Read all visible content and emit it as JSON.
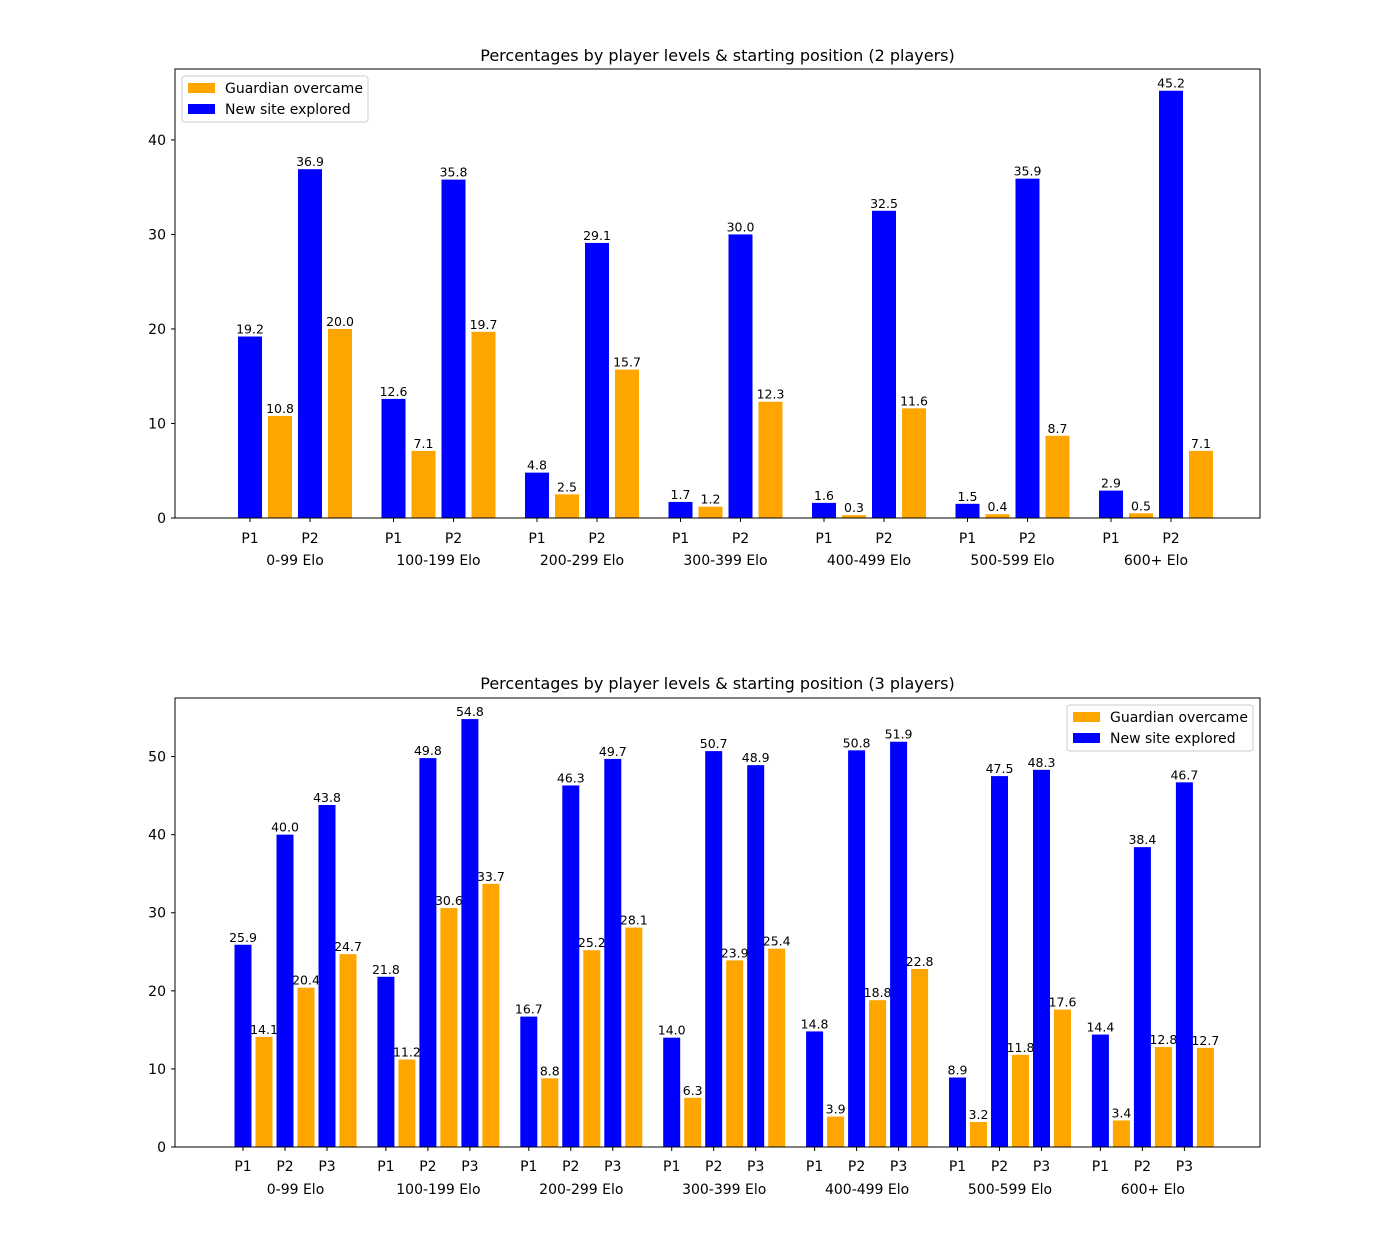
{
  "chart_data": [
    {
      "type": "bar",
      "title": "Percentages by player levels & starting position (2 players)",
      "xlabel": "",
      "ylabel": "",
      "ylim": [
        0,
        47.5
      ],
      "yticks": [
        0,
        10,
        20,
        30,
        40
      ],
      "groups": [
        "0-99 Elo",
        "100-199 Elo",
        "200-299 Elo",
        "300-399 Elo",
        "400-499 Elo",
        "500-599 Elo",
        "600+ Elo"
      ],
      "positions": [
        "P1",
        "P2"
      ],
      "legend": {
        "placement": "top-left",
        "entries": [
          "Guardian overcame",
          "New site explored"
        ]
      },
      "grid": false,
      "series": [
        {
          "name": "New site explored",
          "color": "#0000ff",
          "values": [
            [
              19.2,
              36.9
            ],
            [
              12.6,
              35.8
            ],
            [
              4.8,
              29.1
            ],
            [
              1.7,
              30.0
            ],
            [
              1.6,
              32.5
            ],
            [
              1.5,
              35.9
            ],
            [
              2.9,
              45.2
            ]
          ]
        },
        {
          "name": "Guardian overcame",
          "color": "#ffa500",
          "values": [
            [
              10.8,
              20.0
            ],
            [
              7.1,
              19.7
            ],
            [
              2.5,
              15.7
            ],
            [
              1.2,
              12.3
            ],
            [
              0.3,
              11.6
            ],
            [
              0.4,
              8.7
            ],
            [
              0.5,
              7.1
            ]
          ]
        }
      ]
    },
    {
      "type": "bar",
      "title": "Percentages by player levels & starting position (3 players)",
      "xlabel": "",
      "ylabel": "",
      "ylim": [
        0,
        57.5
      ],
      "yticks": [
        0,
        10,
        20,
        30,
        40,
        50
      ],
      "groups": [
        "0-99 Elo",
        "100-199 Elo",
        "200-299 Elo",
        "300-399 Elo",
        "400-499 Elo",
        "500-599 Elo",
        "600+ Elo"
      ],
      "positions": [
        "P1",
        "P2",
        "P3"
      ],
      "legend": {
        "placement": "top-right",
        "entries": [
          "Guardian overcame",
          "New site explored"
        ]
      },
      "grid": false,
      "series": [
        {
          "name": "New site explored",
          "color": "#0000ff",
          "values": [
            [
              25.9,
              40.0,
              43.8
            ],
            [
              21.8,
              49.8,
              54.8
            ],
            [
              16.7,
              46.3,
              49.7
            ],
            [
              14.0,
              50.7,
              48.9
            ],
            [
              14.8,
              50.8,
              51.9
            ],
            [
              8.9,
              47.5,
              48.3
            ],
            [
              14.4,
              38.4,
              46.7
            ]
          ]
        },
        {
          "name": "Guardian overcame",
          "color": "#ffa500",
          "values": [
            [
              14.1,
              20.4,
              24.7
            ],
            [
              11.2,
              30.6,
              33.7
            ],
            [
              8.8,
              25.2,
              28.1
            ],
            [
              6.3,
              23.9,
              25.4
            ],
            [
              3.9,
              18.8,
              22.8
            ],
            [
              3.2,
              11.8,
              17.6
            ],
            [
              3.4,
              12.8,
              12.7
            ]
          ]
        }
      ]
    }
  ]
}
